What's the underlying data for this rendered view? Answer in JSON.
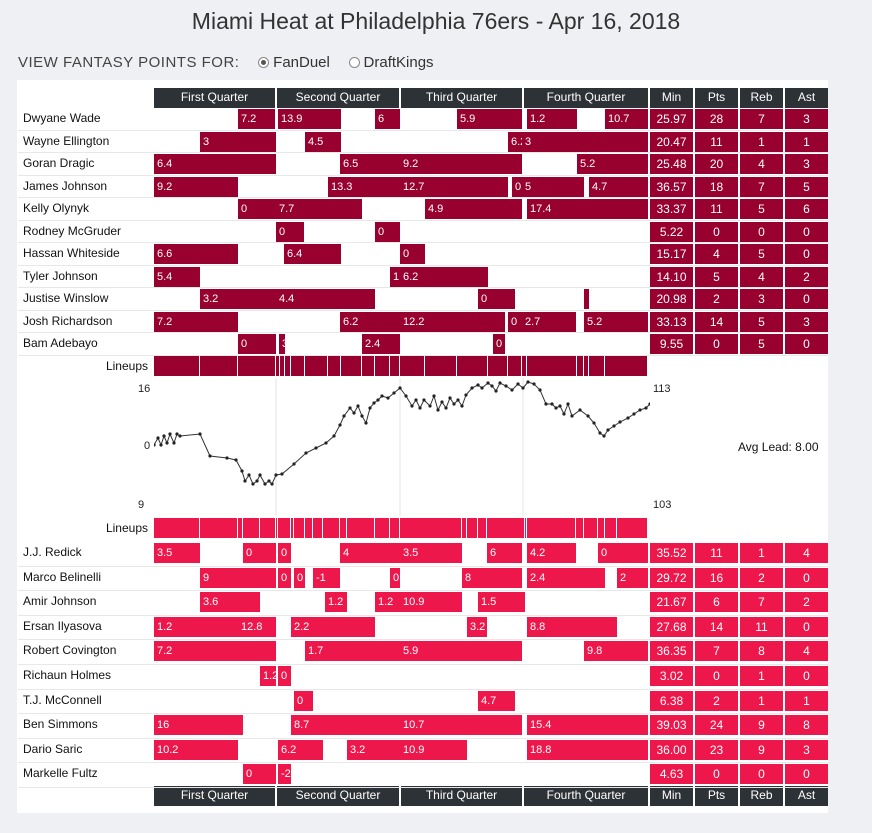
{
  "title": "Miami Heat at Philadelphia 76ers - Apr 16, 2018",
  "view": {
    "label": "VIEW FANTASY POINTS FOR:",
    "options": [
      "FanDuel",
      "DraftKings"
    ],
    "selected": "FanDuel"
  },
  "columns": {
    "quarters": [
      "First Quarter",
      "Second Quarter",
      "Third Quarter",
      "Fourth Quarter"
    ],
    "stats": [
      "Min",
      "Pts",
      "Reb",
      "Ast"
    ]
  },
  "lineups_label": "Lineups",
  "colors": {
    "heat": "#97002f",
    "sixers": "#ed174b",
    "header": "#2d3236"
  },
  "heat": [
    {
      "name": "Dwyane Wade",
      "min": "25.97",
      "pts": "28",
      "reb": "7",
      "ast": "3",
      "stints": [
        [
          238,
          275,
          "7.2"
        ],
        [
          278,
          341,
          "13.9"
        ],
        [
          375,
          400,
          "6"
        ],
        [
          457,
          522,
          "5.9"
        ],
        [
          527,
          577,
          "1.2"
        ],
        [
          605,
          648,
          "10.7"
        ]
      ]
    },
    {
      "name": "Wayne Ellington",
      "min": "20.47",
      "pts": "11",
      "reb": "1",
      "ast": "1",
      "stints": [
        [
          200,
          276,
          "3"
        ],
        [
          305,
          341,
          "4.5"
        ],
        [
          508,
          522,
          "6.2"
        ],
        [
          522,
          648,
          "3"
        ]
      ]
    },
    {
      "name": "Goran Dragic",
      "min": "25.48",
      "pts": "20",
      "reb": "4",
      "ast": "3",
      "stints": [
        [
          154,
          276,
          "6.4"
        ],
        [
          340,
          400,
          "6.5"
        ],
        [
          400,
          522,
          "9.2"
        ],
        [
          577,
          648,
          "5.2"
        ]
      ]
    },
    {
      "name": "James Johnson",
      "min": "36.57",
      "pts": "18",
      "reb": "7",
      "ast": "5",
      "stints": [
        [
          154,
          238,
          "9.2"
        ],
        [
          328,
          400,
          "13.3"
        ],
        [
          400,
          508,
          "12.7"
        ],
        [
          512,
          522,
          "0"
        ],
        [
          522,
          584,
          "5"
        ],
        [
          589,
          648,
          "4.7"
        ]
      ]
    },
    {
      "name": "Kelly Olynyk",
      "min": "33.37",
      "pts": "11",
      "reb": "5",
      "ast": "6",
      "stints": [
        [
          238,
          276,
          "0"
        ],
        [
          276,
          362,
          "7.7"
        ],
        [
          425,
          522,
          "4.9"
        ],
        [
          527,
          648,
          "17.4"
        ]
      ]
    },
    {
      "name": "Rodney McGruder",
      "min": "5.22",
      "pts": "0",
      "reb": "0",
      "ast": "0",
      "stints": [
        [
          276,
          304,
          "0"
        ],
        [
          375,
          400,
          "0"
        ]
      ]
    },
    {
      "name": "Hassan Whiteside",
      "min": "15.17",
      "pts": "4",
      "reb": "5",
      "ast": "0",
      "stints": [
        [
          154,
          238,
          "6.6"
        ],
        [
          284,
          341,
          "6.4"
        ],
        [
          400,
          425,
          "0"
        ]
      ]
    },
    {
      "name": "Tyler Johnson",
      "min": "14.10",
      "pts": "5",
      "reb": "4",
      "ast": "2",
      "stints": [
        [
          154,
          200,
          "5.4"
        ],
        [
          390,
          400,
          "1"
        ],
        [
          400,
          488,
          "6.2"
        ]
      ]
    },
    {
      "name": "Justise Winslow",
      "min": "20.98",
      "pts": "2",
      "reb": "3",
      "ast": "0",
      "stints": [
        [
          200,
          276,
          "3.2"
        ],
        [
          276,
          375,
          "4.4"
        ],
        [
          478,
          515,
          "0"
        ],
        [
          584,
          589,
          ""
        ]
      ]
    },
    {
      "name": "Josh Richardson",
      "min": "33.13",
      "pts": "14",
      "reb": "5",
      "ast": "3",
      "stints": [
        [
          154,
          238,
          "7.2"
        ],
        [
          340,
          400,
          "6.2"
        ],
        [
          400,
          505,
          "12.2"
        ],
        [
          508,
          522,
          "0"
        ],
        [
          522,
          576,
          "2.7"
        ],
        [
          584,
          648,
          "5.2"
        ]
      ]
    },
    {
      "name": "Bam Adebayo",
      "min": "9.55",
      "pts": "0",
      "reb": "5",
      "ast": "0",
      "stints": [
        [
          238,
          276,
          "0"
        ],
        [
          279,
          285,
          "3"
        ],
        [
          362,
          400,
          "2.4"
        ],
        [
          493,
          505,
          "0"
        ]
      ]
    }
  ],
  "sixers": [
    {
      "name": "J.J. Redick",
      "min": "35.52",
      "pts": "11",
      "reb": "1",
      "ast": "4",
      "stints": [
        [
          154,
          200,
          "3.5"
        ],
        [
          243,
          276,
          "0"
        ],
        [
          278,
          291,
          "0"
        ],
        [
          340,
          400,
          "4"
        ],
        [
          400,
          462,
          "3.5"
        ],
        [
          487,
          522,
          "6"
        ],
        [
          527,
          576,
          "4.2"
        ],
        [
          598,
          648,
          "0"
        ]
      ]
    },
    {
      "name": "Marco Belinelli",
      "min": "29.72",
      "pts": "16",
      "reb": "2",
      "ast": "0",
      "stints": [
        [
          200,
          276,
          "9"
        ],
        [
          278,
          291,
          "0"
        ],
        [
          294,
          305,
          "0"
        ],
        [
          313,
          340,
          "-1"
        ],
        [
          390,
          400,
          "0"
        ],
        [
          462,
          522,
          "8"
        ],
        [
          527,
          605,
          "2.4"
        ],
        [
          617,
          648,
          "2"
        ]
      ]
    },
    {
      "name": "Amir Johnson",
      "min": "21.67",
      "pts": "6",
      "reb": "7",
      "ast": "2",
      "stints": [
        [
          200,
          260,
          "3.6"
        ],
        [
          325,
          347,
          "1.2"
        ],
        [
          375,
          400,
          "1.2"
        ],
        [
          400,
          462,
          "10.9"
        ],
        [
          478,
          525,
          "1.5"
        ]
      ]
    },
    {
      "name": "Ersan Ilyasova",
      "min": "27.68",
      "pts": "14",
      "reb": "11",
      "ast": "0",
      "stints": [
        [
          154,
          238,
          "1.2"
        ],
        [
          238,
          276,
          "12.8"
        ],
        [
          291,
          375,
          "2.2"
        ],
        [
          467,
          487,
          "3.2"
        ],
        [
          527,
          617,
          "8.8"
        ]
      ]
    },
    {
      "name": "Robert Covington",
      "min": "36.35",
      "pts": "7",
      "reb": "8",
      "ast": "4",
      "stints": [
        [
          154,
          276,
          "7.2"
        ],
        [
          305,
          400,
          "1.7"
        ],
        [
          400,
          522,
          "5.9"
        ],
        [
          584,
          648,
          "9.8"
        ]
      ]
    },
    {
      "name": "Richaun Holmes",
      "min": "3.02",
      "pts": "0",
      "reb": "1",
      "ast": "0",
      "stints": [
        [
          260,
          276,
          "1.2"
        ],
        [
          278,
          291,
          "0"
        ]
      ]
    },
    {
      "name": "T.J. McConnell",
      "min": "6.38",
      "pts": "2",
      "reb": "1",
      "ast": "1",
      "stints": [
        [
          294,
          313,
          "0"
        ],
        [
          478,
          515,
          "4.7"
        ]
      ]
    },
    {
      "name": "Ben Simmons",
      "min": "39.03",
      "pts": "24",
      "reb": "9",
      "ast": "8",
      "stints": [
        [
          154,
          243,
          "16"
        ],
        [
          291,
          400,
          "8.7"
        ],
        [
          400,
          522,
          "10.7"
        ],
        [
          527,
          648,
          "15.4"
        ]
      ]
    },
    {
      "name": "Dario Saric",
      "min": "36.00",
      "pts": "23",
      "reb": "9",
      "ast": "3",
      "stints": [
        [
          154,
          238,
          "10.2"
        ],
        [
          278,
          323,
          "6.2"
        ],
        [
          347,
          400,
          "3.2"
        ],
        [
          400,
          467,
          "10.9"
        ],
        [
          527,
          648,
          "18.8"
        ]
      ]
    },
    {
      "name": "Markelle Fultz",
      "min": "4.63",
      "pts": "0",
      "reb": "0",
      "ast": "0",
      "stints": [
        [
          243,
          276,
          "0"
        ],
        [
          278,
          291,
          "-2"
        ]
      ]
    }
  ],
  "lead_chart": {
    "y_top_left": "16",
    "y_zero": "0",
    "y_bottom_left": "9",
    "score_top": "113",
    "score_bottom": "103",
    "avg_label": "Avg Lead: 8.00"
  }
}
